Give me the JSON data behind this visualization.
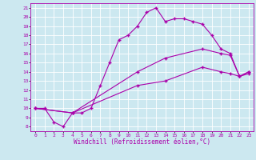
{
  "xlabel": "Windchill (Refroidissement éolien,°C)",
  "bg_color": "#cce8f0",
  "line_color": "#aa00aa",
  "grid_color": "#ffffff",
  "xlim": [
    -0.5,
    23.5
  ],
  "ylim": [
    7.5,
    21.5
  ],
  "xticks": [
    0,
    1,
    2,
    3,
    4,
    5,
    6,
    7,
    8,
    9,
    10,
    11,
    12,
    13,
    14,
    15,
    16,
    17,
    18,
    19,
    20,
    21,
    22,
    23
  ],
  "yticks": [
    8,
    9,
    10,
    11,
    12,
    13,
    14,
    15,
    16,
    17,
    18,
    19,
    20,
    21
  ],
  "curve1_x": [
    0,
    1,
    2,
    3,
    4,
    5,
    6,
    7,
    8,
    9,
    10,
    11,
    12,
    13,
    14,
    15,
    16,
    17,
    18,
    19,
    20,
    21,
    22,
    23
  ],
  "curve1_y": [
    10,
    10,
    8.5,
    8,
    9.5,
    9.5,
    10,
    12.5,
    15,
    17.5,
    18,
    19,
    20.5,
    21,
    19.5,
    19.8,
    19.8,
    19.5,
    19.2,
    18,
    16.5,
    16,
    13.5,
    14
  ],
  "curve2_x": [
    0,
    4,
    11,
    14,
    18,
    20,
    21,
    22,
    23
  ],
  "curve2_y": [
    10,
    9.5,
    14,
    15.5,
    16.5,
    16,
    15.8,
    13.5,
    14
  ],
  "curve3_x": [
    0,
    4,
    11,
    14,
    18,
    20,
    21,
    22,
    23
  ],
  "curve3_y": [
    10,
    9.5,
    12.5,
    13,
    14.5,
    14,
    13.8,
    13.5,
    13.8
  ],
  "marker": "+",
  "markersize": 3,
  "linewidth": 0.8,
  "tick_fontsize": 4.5,
  "xlabel_fontsize": 5.5
}
